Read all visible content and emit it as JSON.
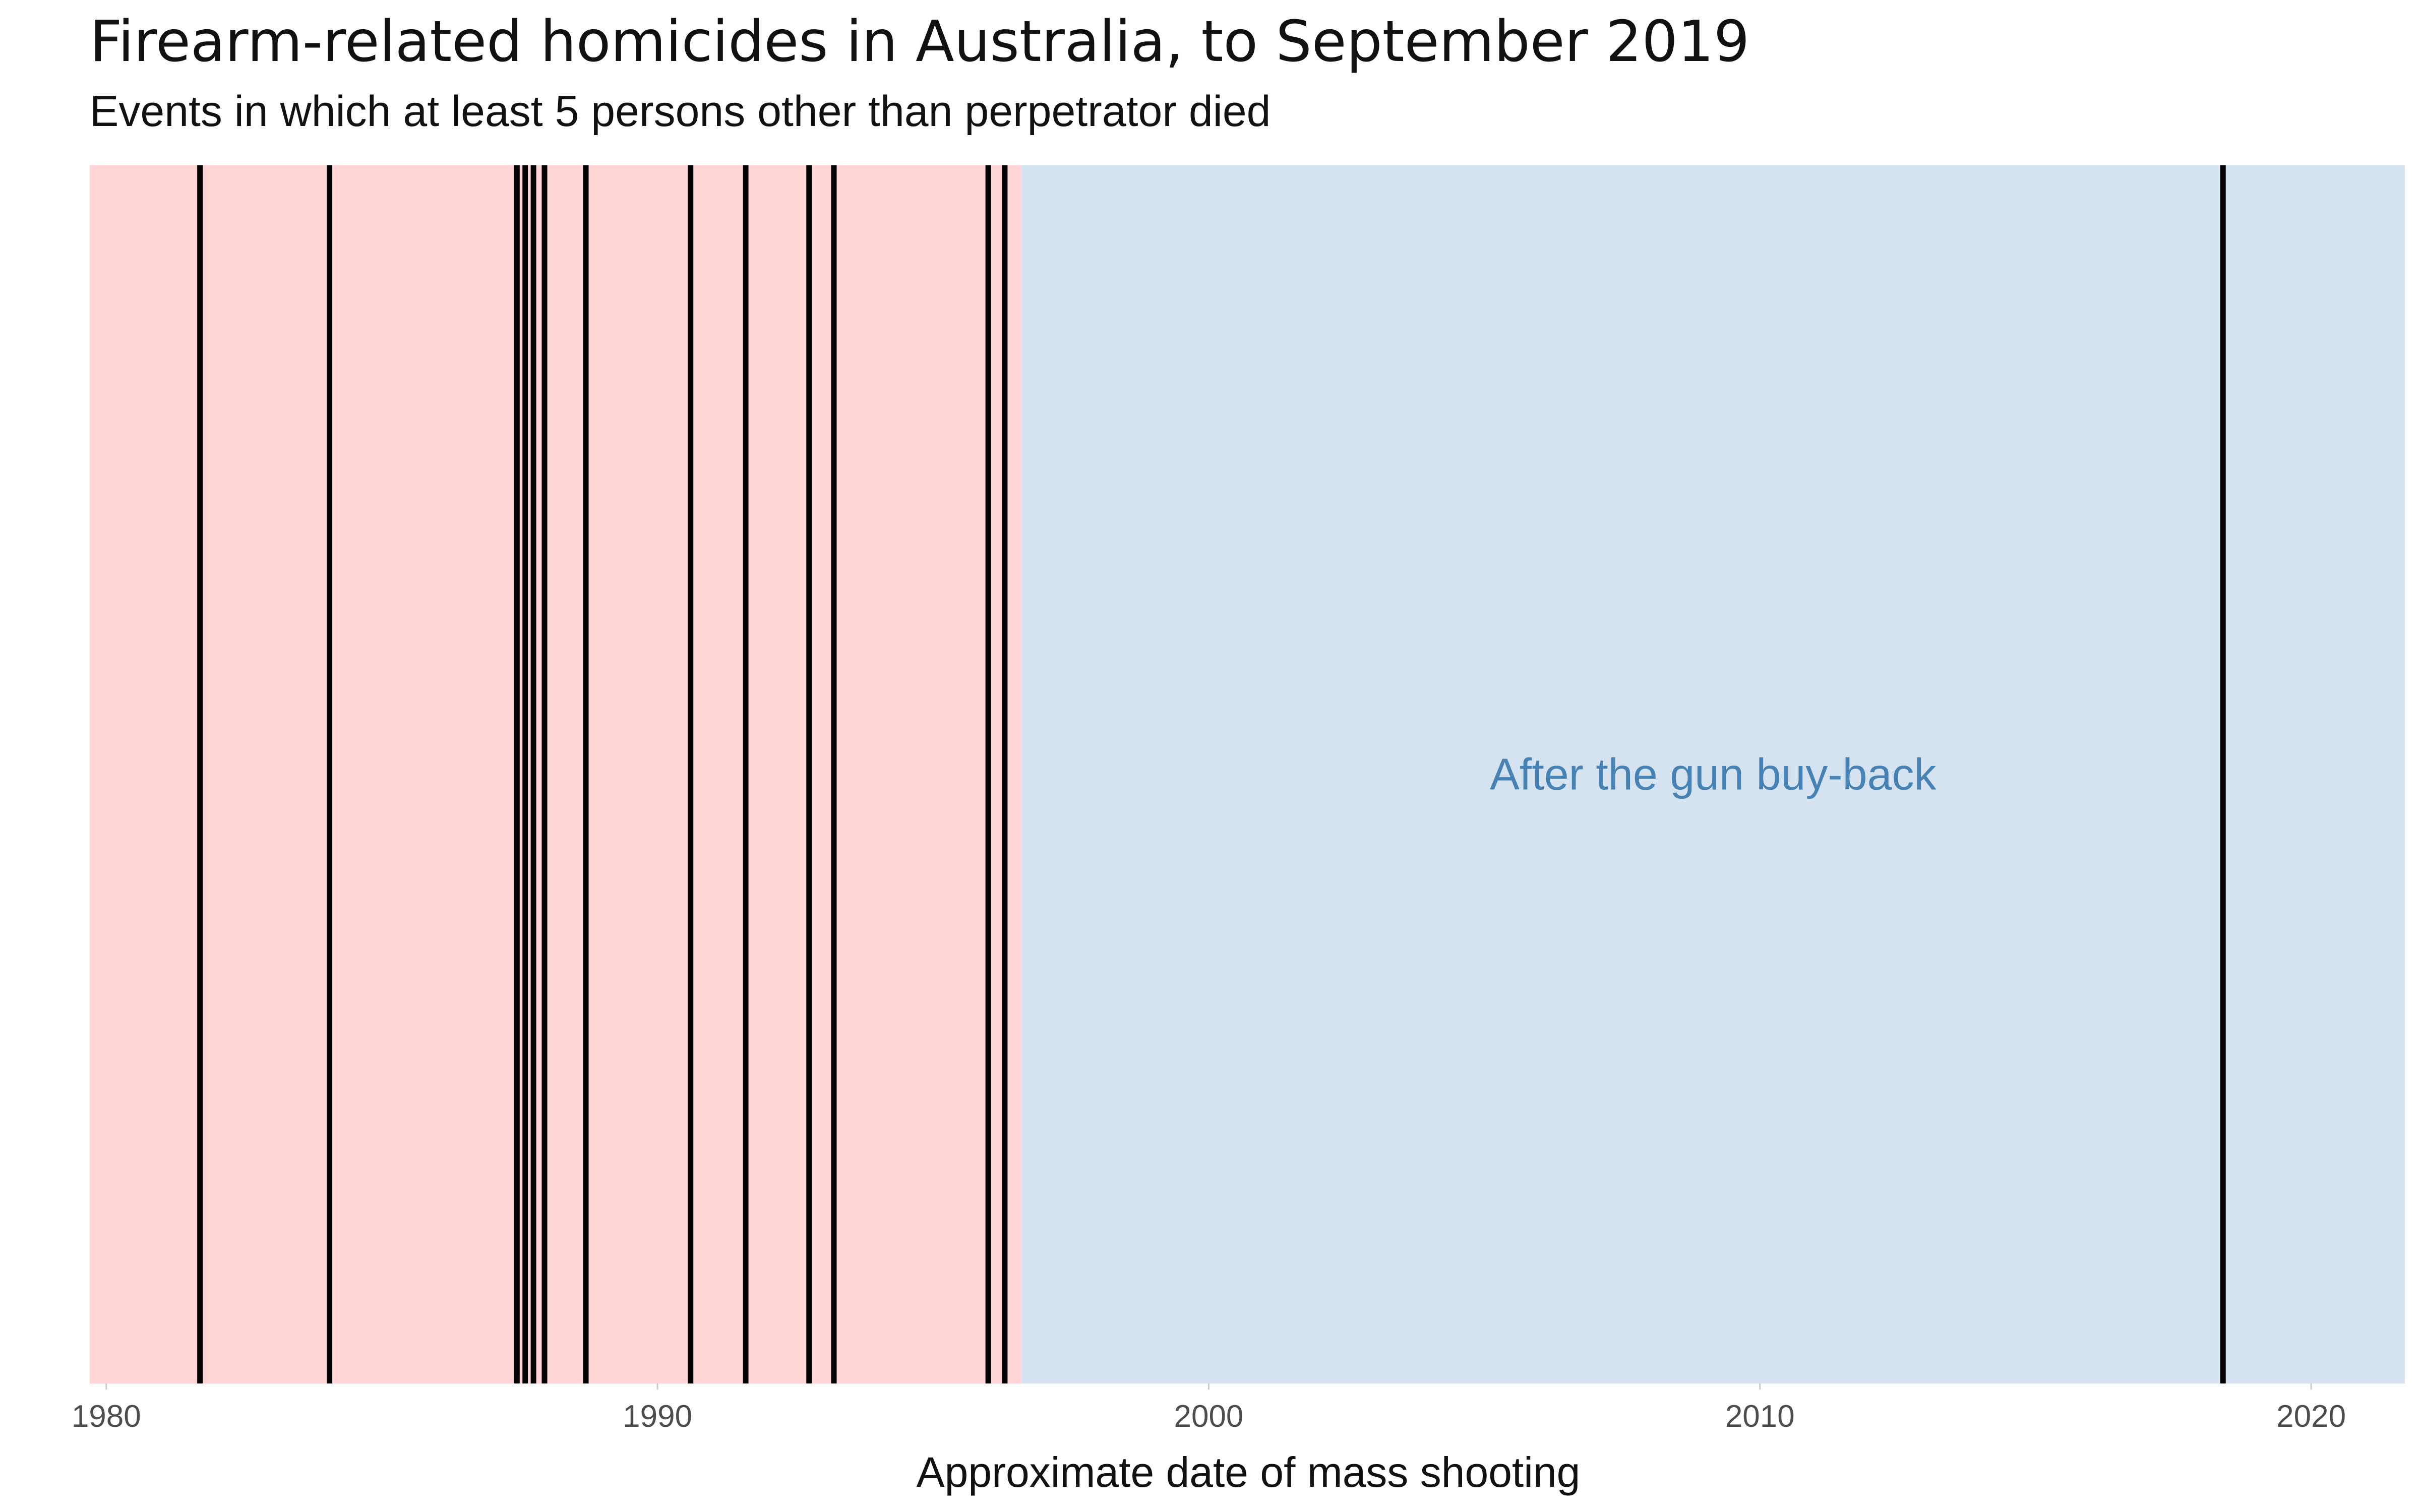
{
  "title": "Firearm-related homicides in Australia, to September 2019",
  "subtitle": "Events in which at least 5 persons other than perpetrator died",
  "chart_data": {
    "type": "event-timeline",
    "title": "Firearm-related homicides in Australia, to September 2019",
    "subtitle": "Events in which at least 5 persons other than perpetrator died",
    "xlabel": "Approximate date of mass shooting",
    "ylabel": "",
    "xlim": [
      1979.7,
      2021.7
    ],
    "x_ticks": [
      1980,
      1990,
      2000,
      2010,
      2020
    ],
    "x_tick_labels": [
      "1980",
      "1990",
      "2000",
      "2010",
      "2020"
    ],
    "grid": false,
    "regions": [
      {
        "from": 1979.7,
        "to": 1996.6,
        "color": "#ffd5d6",
        "label": ""
      },
      {
        "from": 1996.6,
        "to": 2021.7,
        "color": "#d5e3f0",
        "label": "After the gun buy-back",
        "label_color": "#4682b4"
      }
    ],
    "events": [
      1981.7,
      1984.05,
      1987.45,
      1987.6,
      1987.75,
      1987.95,
      1988.7,
      1990.6,
      1991.6,
      1992.75,
      1993.2,
      1996.0,
      1996.3,
      2018.4
    ],
    "event_color": "#000000"
  }
}
